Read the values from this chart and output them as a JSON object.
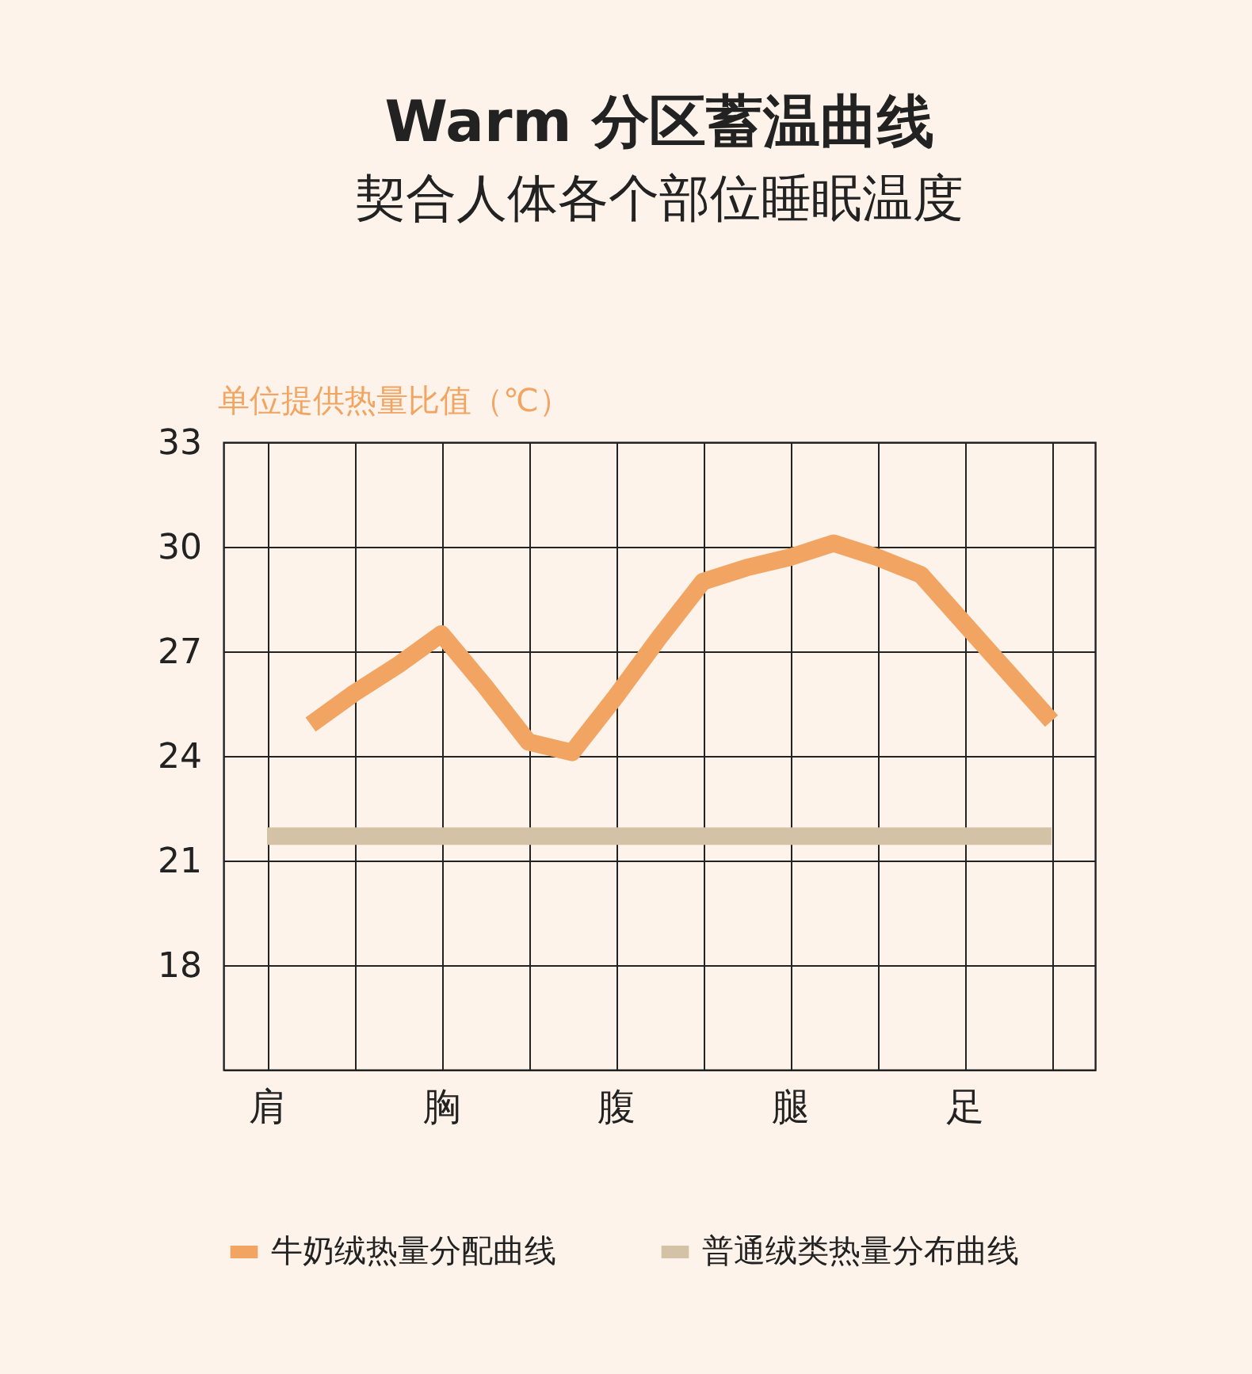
{
  "chart_data": {
    "type": "line",
    "title": "Warm 分区蓄温曲线",
    "subtitle": "契合人体各个部位睡眠温度",
    "ylabel": "单位提供热量比值（℃）",
    "categories": [
      "肩",
      null,
      null,
      null,
      "胸",
      null,
      null,
      null,
      "腹",
      null,
      null,
      null,
      "腿",
      null,
      null,
      null,
      "足",
      null,
      null
    ],
    "ylim": [
      15,
      33
    ],
    "yticks": [
      {
        "value": 15,
        "label": null
      },
      18,
      21,
      24,
      27,
      30,
      33
    ],
    "grid": true,
    "legend": "bottom",
    "series": [
      {
        "name": "牛奶绒热量分配曲线",
        "color": "#f2a562",
        "values": [
          null,
          24.9,
          25.8,
          26.6,
          27.5,
          26.0,
          24.4,
          24.1,
          25.7,
          27.4,
          29.0,
          29.4,
          29.7,
          30.1,
          29.7,
          29.2,
          27.8,
          26.4,
          25.0
        ]
      },
      {
        "name": "普通绒类热量分布曲线",
        "color": "#d4c2a6",
        "values": [
          21.7,
          21.7,
          21.7,
          21.7,
          21.7,
          21.7,
          21.7,
          21.7,
          21.7,
          21.7,
          21.7,
          21.7,
          21.7,
          21.7,
          21.7,
          21.7,
          21.7,
          21.7,
          21.7
        ]
      }
    ]
  }
}
